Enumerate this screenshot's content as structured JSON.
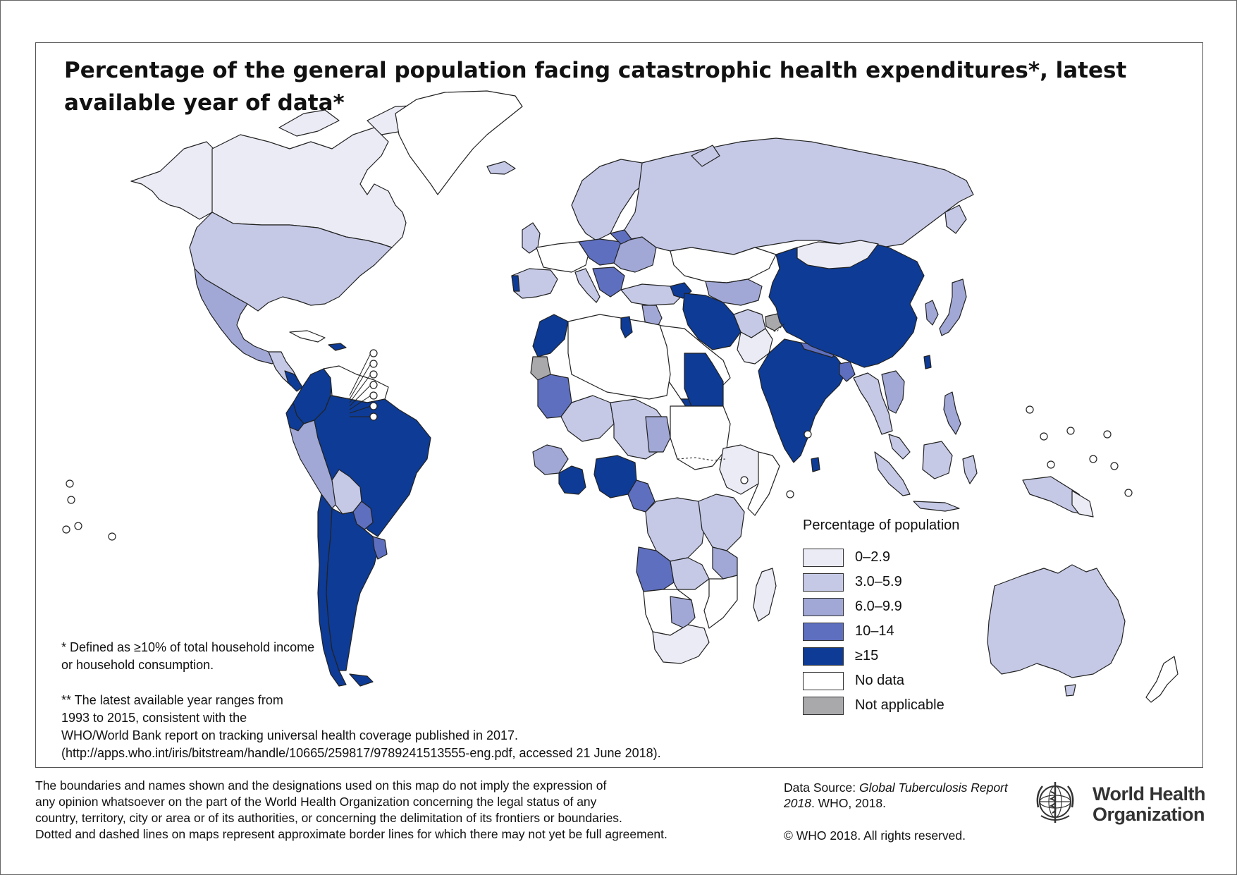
{
  "map": {
    "title": "Percentage of the general population facing catastrophic health expenditures*, latest available year of data*",
    "colors": {
      "c0": "#ebebf5",
      "c1": "#c5c9e6",
      "c2": "#a1a8d6",
      "c3": "#5f6fbf",
      "c4": "#0d3b96",
      "nodata": "#ffffff",
      "na": "#a9a9ab"
    }
  },
  "legend": {
    "title": "Percentage of population",
    "items": [
      {
        "label": "0–2.9",
        "color": "#ebebf5"
      },
      {
        "label": "3.0–5.9",
        "color": "#c5c9e6"
      },
      {
        "label": "6.0–9.9",
        "color": "#a1a8d6"
      },
      {
        "label": "10–14",
        "color": "#5f6fbf"
      },
      {
        "label": "≥15",
        "color": "#0d3b96"
      },
      {
        "label": "No data",
        "color": "#ffffff"
      },
      {
        "label": "Not applicable",
        "color": "#a9a9ab"
      }
    ]
  },
  "footnotes": {
    "fn1": "* Defined as ≥10% of total household income or household consumption.",
    "fn2_line1": "** The latest available year ranges from",
    "fn2_line2": "1993 to 2015, consistent with the",
    "fn2_line3": "WHO/World Bank report on tracking universal health coverage published in 2017.",
    "fn2_line4": "(http://apps.who.int/iris/bitstream/handle/10665/259817/9789241513555-eng.pdf, accessed 21 June 2018)."
  },
  "disclaimer": {
    "line1": "The boundaries and names shown and the designations used on this map do not imply the expression of",
    "line2": "any opinion whatsoever on the part of the World Health Organization concerning the legal status of any",
    "line3": "country, territory, city or area or of its authorities, or concerning the delimitation of its frontiers or boundaries.",
    "line4": "Dotted and dashed lines on maps represent approximate border lines for which there may not yet be full agreement."
  },
  "source": {
    "prefix": "Data Source: ",
    "publication": "Global Tuberculosis Report 2018",
    "suffix": ". WHO, 2018.",
    "copyright": "© WHO 2018. All rights reserved."
  },
  "branding": {
    "org_line1": "World Health",
    "org_line2": "Organization",
    "logo_icon": "who-emblem-icon"
  }
}
